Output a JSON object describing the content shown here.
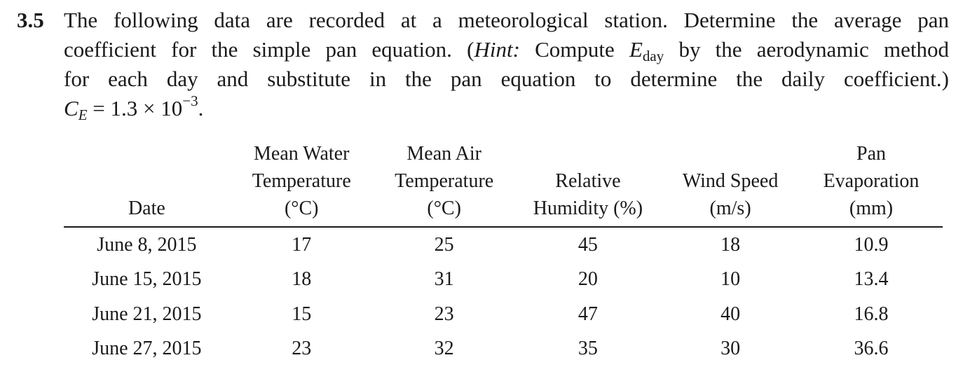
{
  "problem": {
    "number": "3.5",
    "lines": [
      "The following data are recorded at a meteorological station. Determine the average pan",
      "coefficient for the simple pan equation. (",
      "for each day and substitute in the pan equation to determine the daily coefficient.)"
    ],
    "hint_label": "Hint:",
    "hint_text_before": " Compute ",
    "e_symbol": "E",
    "e_subscript": "day",
    "hint_text_after": " by the aerodynamic method",
    "ce_symbol": "C",
    "ce_subscript": "E",
    "ce_value": " = 1.3 × 10",
    "ce_exponent": "−3",
    "ce_end": "."
  },
  "table": {
    "headers": [
      {
        "l1": "",
        "l2": "",
        "l3": "Date"
      },
      {
        "l1": "Mean Water",
        "l2": "Temperature",
        "l3": "(°C)"
      },
      {
        "l1": "Mean Air",
        "l2": "Temperature",
        "l3": "(°C)"
      },
      {
        "l1": "",
        "l2": "Relative",
        "l3": "Humidity (%)"
      },
      {
        "l1": "",
        "l2": "Wind Speed",
        "l3": "(m/s)"
      },
      {
        "l1": "Pan",
        "l2": "Evaporation",
        "l3": "(mm)"
      }
    ],
    "rows": [
      [
        "June 8, 2015",
        "17",
        "25",
        "45",
        "18",
        "10.9"
      ],
      [
        "June 15, 2015",
        "18",
        "31",
        "20",
        "10",
        "13.4"
      ],
      [
        "June 21, 2015",
        "15",
        "23",
        "47",
        "40",
        "16.8"
      ],
      [
        "June 27, 2015",
        "23",
        "32",
        "35",
        "30",
        "36.6"
      ]
    ]
  }
}
